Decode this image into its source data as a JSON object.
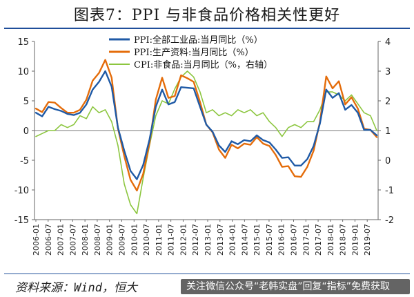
{
  "title": "图表7：PPI 与非食品价格相关性更好",
  "source": "资料来源：Wind，恒大",
  "watermark": "关注微信公众号“老韩实盘”回复“指标”免费获取",
  "colors": {
    "ppi_all": "#1f5aa6",
    "ppi_prod": "#e46c0a",
    "cpi_nonfood": "#8cc63f",
    "rule": "#1f4e9a"
  },
  "chart_data": {
    "type": "line",
    "legend_position": "top-center",
    "grid": false,
    "left_axis": {
      "min": -15,
      "max": 15,
      "ticks": [
        15,
        10,
        5,
        0,
        -5,
        -10,
        -15
      ]
    },
    "right_axis": {
      "min": -2,
      "max": 4,
      "ticks": [
        4,
        3,
        2,
        1,
        0,
        -1,
        -2
      ]
    },
    "x_tick_labels": [
      "2006-01",
      "2006-07",
      "2007-01",
      "2007-07",
      "2008-01",
      "2008-07",
      "2009-01",
      "2009-07",
      "2010-01",
      "2010-07",
      "2011-01",
      "2011-07",
      "2012-01",
      "2012-07",
      "2013-01",
      "2013-07",
      "2014-01",
      "2014-07",
      "2015-01",
      "2015-07",
      "2016-01",
      "2016-07",
      "2017-01",
      "2017-07",
      "2018-01",
      "2018-07",
      "2019-01",
      "2019-07"
    ],
    "series": [
      {
        "name": "PPI:全部工业品:当月同比（%）",
        "axis": "left",
        "values": [
          3.0,
          2.4,
          4.0,
          3.6,
          3.3,
          2.8,
          2.6,
          3.0,
          4.4,
          6.9,
          8.2,
          10.0,
          7.4,
          0.5,
          -3.4,
          -6.8,
          -8.2,
          -5.8,
          -1.5,
          4.0,
          6.9,
          4.4,
          4.8,
          7.3,
          7.2,
          7.1,
          4.0,
          1.0,
          -0.2,
          -2.5,
          -3.6,
          -1.8,
          -2.3,
          -1.6,
          -1.8,
          -0.8,
          -1.6,
          -2.0,
          -3.2,
          -4.6,
          -4.5,
          -5.9,
          -5.9,
          -4.8,
          -2.6,
          1.2,
          6.9,
          5.5,
          6.3,
          3.5,
          4.3,
          3.0,
          0.1,
          0.1,
          -0.8
        ]
      },
      {
        "name": "PPI:生产资料:当月同比（%）",
        "axis": "left",
        "values": [
          3.7,
          3.1,
          4.8,
          4.7,
          3.8,
          3.0,
          3.0,
          3.5,
          5.2,
          8.4,
          9.7,
          11.9,
          8.9,
          0.4,
          -4.3,
          -8.3,
          -10.1,
          -7.3,
          -2.1,
          5.2,
          8.9,
          5.5,
          5.8,
          9.3,
          8.8,
          8.2,
          4.8,
          1.0,
          -0.3,
          -3.2,
          -4.6,
          -2.4,
          -3.0,
          -2.2,
          -2.4,
          -1.1,
          -2.2,
          -2.6,
          -4.1,
          -6.1,
          -6.0,
          -7.7,
          -7.8,
          -6.1,
          -3.4,
          1.5,
          9.1,
          7.1,
          8.3,
          4.4,
          5.6,
          3.7,
          0.3,
          0.1,
          -1.1
        ]
      },
      {
        "name": "CPI:非食品:当月同比（%，右轴）",
        "axis": "right",
        "values": [
          0.8,
          0.9,
          1.0,
          1.0,
          1.2,
          1.1,
          1.2,
          1.5,
          1.4,
          1.8,
          1.6,
          1.7,
          1.3,
          0.5,
          -0.8,
          -1.5,
          -1.8,
          -0.6,
          0.5,
          1.5,
          2.0,
          1.9,
          2.4,
          2.8,
          3.0,
          2.8,
          2.3,
          1.6,
          1.7,
          1.5,
          1.6,
          1.5,
          1.7,
          1.6,
          1.7,
          1.5,
          1.6,
          1.3,
          1.1,
          0.8,
          1.1,
          1.2,
          1.1,
          1.3,
          1.3,
          1.7,
          2.3,
          2.3,
          2.2,
          2.0,
          2.2,
          1.9,
          1.6,
          1.5,
          1.0
        ]
      }
    ]
  }
}
